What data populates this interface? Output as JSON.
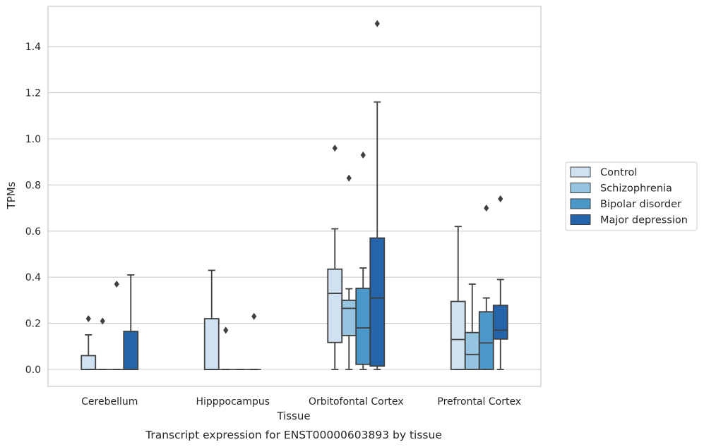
{
  "chart_data": {
    "type": "box",
    "title": "",
    "caption": "Transcript expression for ENST00000603893 by tissue",
    "xlabel": "Tissue",
    "ylabel": "TPMs",
    "ylim": [
      -0.07,
      1.6
    ],
    "yticks": [
      0.0,
      0.2,
      0.4,
      0.6,
      0.8,
      1.0,
      1.2,
      1.4
    ],
    "yticklabels": [
      "0.0",
      "0.2",
      "0.4",
      "0.6",
      "0.8",
      "1.0",
      "1.2",
      "1.4"
    ],
    "grid": true,
    "legend_position": "right",
    "categories": [
      "Cerebellum",
      "Hipppocampus",
      "Orbitofontal Cortex",
      "Prefrontal Cortex"
    ],
    "series": [
      {
        "name": "Control",
        "color": "#d0e1f2",
        "boxes": [
          {
            "whislo": 0.0,
            "q1": 0.0,
            "med": 0.0,
            "q3": 0.06,
            "whishi": 0.15,
            "fliers": [
              0.22
            ]
          },
          {
            "whislo": 0.0,
            "q1": 0.0,
            "med": 0.0,
            "q3": 0.22,
            "whishi": 0.43,
            "fliers": []
          },
          {
            "whislo": 0.0,
            "q1": 0.117,
            "med": 0.33,
            "q3": 0.435,
            "whishi": 0.61,
            "fliers": [
              0.96
            ]
          },
          {
            "whislo": 0.0,
            "q1": 0.0,
            "med": 0.13,
            "q3": 0.295,
            "whishi": 0.62,
            "fliers": []
          }
        ]
      },
      {
        "name": "Schizophrenia",
        "color": "#94c4df",
        "boxes": [
          {
            "whislo": 0.0,
            "q1": 0.0,
            "med": 0.0,
            "q3": 0.0,
            "whishi": 0.0,
            "fliers": [
              0.21
            ]
          },
          {
            "whislo": 0.0,
            "q1": 0.0,
            "med": 0.0,
            "q3": 0.0,
            "whishi": 0.0,
            "fliers": [
              0.17
            ]
          },
          {
            "whislo": 0.0,
            "q1": 0.147,
            "med": 0.265,
            "q3": 0.3,
            "whishi": 0.35,
            "fliers": [
              0.83
            ]
          },
          {
            "whislo": 0.0,
            "q1": 0.0,
            "med": 0.065,
            "q3": 0.16,
            "whishi": 0.37,
            "fliers": []
          }
        ]
      },
      {
        "name": "Bipolar disorder",
        "color": "#4a98c9",
        "boxes": [
          {
            "whislo": 0.0,
            "q1": 0.0,
            "med": 0.0,
            "q3": 0.0,
            "whishi": 0.0,
            "fliers": [
              0.37
            ]
          },
          {
            "whislo": 0.0,
            "q1": 0.0,
            "med": 0.0,
            "q3": 0.0,
            "whishi": 0.0,
            "fliers": []
          },
          {
            "whislo": 0.0,
            "q1": 0.022,
            "med": 0.18,
            "q3": 0.352,
            "whishi": 0.44,
            "fliers": [
              0.93
            ]
          },
          {
            "whislo": 0.0,
            "q1": 0.0,
            "med": 0.115,
            "q3": 0.25,
            "whishi": 0.31,
            "fliers": [
              0.7
            ]
          }
        ]
      },
      {
        "name": "Major depression",
        "color": "#2464ab",
        "boxes": [
          {
            "whislo": 0.0,
            "q1": 0.0,
            "med": 0.0,
            "q3": 0.165,
            "whishi": 0.41,
            "fliers": []
          },
          {
            "whislo": 0.0,
            "q1": 0.0,
            "med": 0.0,
            "q3": 0.0,
            "whishi": 0.0,
            "fliers": [
              0.23
            ]
          },
          {
            "whislo": 0.0,
            "q1": 0.015,
            "med": 0.31,
            "q3": 0.57,
            "whishi": 1.16,
            "fliers": [
              1.5
            ]
          },
          {
            "whislo": 0.0,
            "q1": 0.132,
            "med": 0.17,
            "q3": 0.278,
            "whishi": 0.39,
            "fliers": [
              0.74
            ]
          }
        ]
      }
    ]
  }
}
